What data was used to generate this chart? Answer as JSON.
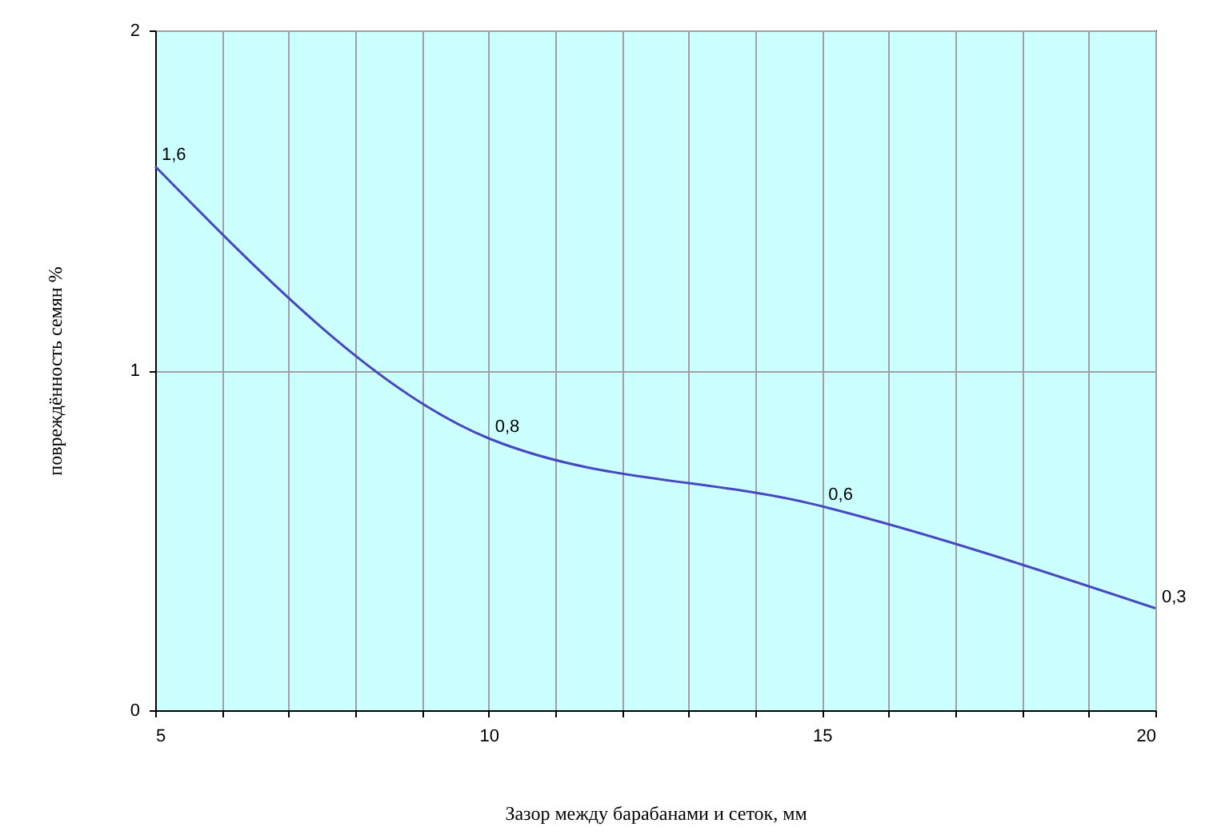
{
  "chart_data": {
    "type": "line",
    "xlabel": "Зазор между барабанами и сеток, мм",
    "ylabel": "повреждённость семян %",
    "x": [
      5,
      10,
      15,
      20
    ],
    "values": [
      1.6,
      0.8,
      0.6,
      0.3
    ],
    "value_labels": [
      "1,6",
      "0,8",
      "0,6",
      "0,3"
    ],
    "color": "#4848c0",
    "xlim": [
      5,
      20
    ],
    "xticks": [
      5,
      {
        "value": 6,
        "label": null
      },
      {
        "value": 7,
        "label": null
      },
      {
        "value": 8,
        "label": null
      },
      {
        "value": 9,
        "label": null
      },
      10,
      {
        "value": 11,
        "label": null
      },
      {
        "value": 12,
        "label": null
      },
      {
        "value": 13,
        "label": null
      },
      {
        "value": 14,
        "label": null
      },
      15,
      {
        "value": 16,
        "label": null
      },
      {
        "value": 17,
        "label": null
      },
      {
        "value": 18,
        "label": null
      },
      {
        "value": 19,
        "label": null
      },
      20
    ],
    "ylim": [
      0,
      2
    ],
    "yticks": [
      0,
      1,
      2
    ],
    "grid": true,
    "marker": "none",
    "line_style": "solid"
  }
}
